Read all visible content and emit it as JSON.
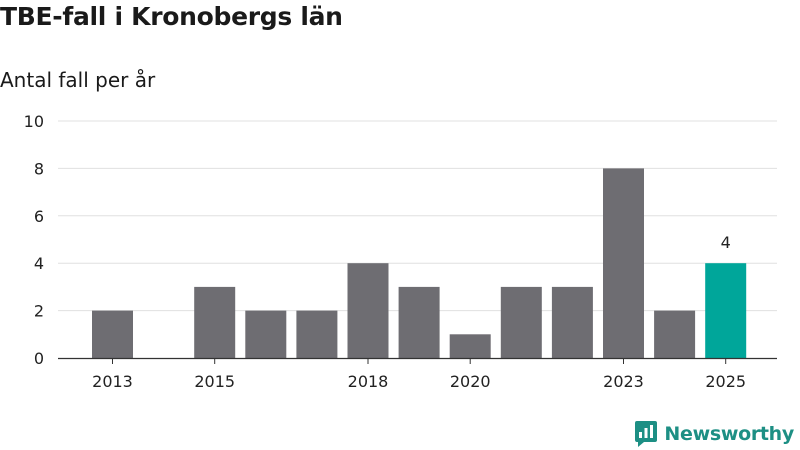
{
  "chart_data": {
    "type": "bar",
    "title": "TBE-fall i Kronobergs län",
    "subtitle": "Antal fall per år",
    "xlabel": "",
    "ylabel": "",
    "categories": [
      "2013",
      "2014",
      "2015",
      "2016",
      "2017",
      "2018",
      "2019",
      "2020",
      "2021",
      "2022",
      "2023",
      "2024",
      "2025"
    ],
    "values": [
      2,
      0,
      3,
      2,
      2,
      4,
      3,
      1,
      3,
      3,
      8,
      2,
      4
    ],
    "x_tick_labels": [
      "2013",
      "2015",
      "2018",
      "2020",
      "2023",
      "2025"
    ],
    "y_ticks": [
      0,
      2,
      4,
      6,
      8,
      10
    ],
    "ylim": [
      0,
      10
    ],
    "grid": true,
    "highlight": {
      "category": "2025",
      "label": "4"
    },
    "colors": {
      "bar": "#6e6d72",
      "highlight": "#00a69a",
      "grid": "#e0e0e0",
      "axis": "#333333"
    }
  },
  "brand": {
    "name": "Newsworthy",
    "icon": "newsworthy-logo-icon",
    "color": "#1d8f84"
  }
}
